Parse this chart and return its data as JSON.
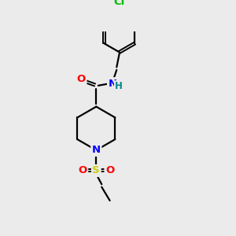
{
  "background_color": "#ebebeb",
  "bond_color": "#000000",
  "atom_colors": {
    "O": "#ff0000",
    "N": "#0000ff",
    "S": "#cccc00",
    "Cl": "#00bb00",
    "H": "#008888",
    "C": "#000000"
  },
  "figsize": [
    3.0,
    3.0
  ],
  "dpi": 100
}
